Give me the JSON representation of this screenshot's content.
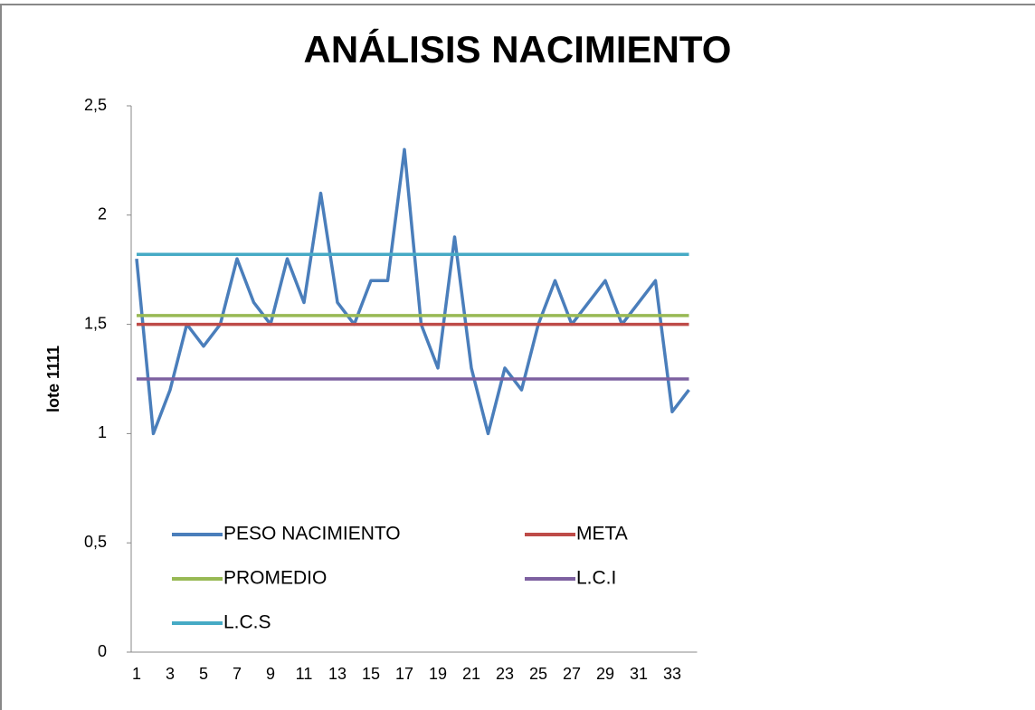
{
  "chart_data": {
    "type": "line",
    "title": "ANÁLISIS NACIMIENTO",
    "ylabel": "lote 1111",
    "categories": [
      1,
      null,
      3,
      null,
      5,
      null,
      7,
      null,
      9,
      null,
      11,
      null,
      13,
      null,
      15,
      null,
      17,
      null,
      19,
      null,
      21,
      null,
      23,
      null,
      25,
      null,
      27,
      null,
      29,
      null,
      31,
      null,
      33,
      null
    ],
    "series": [
      {
        "name": "PESO NACIMIENTO",
        "color": "#4a7ebb",
        "values": [
          1.8,
          1.0,
          1.2,
          1.5,
          1.4,
          1.5,
          1.8,
          1.6,
          1.5,
          1.8,
          1.6,
          2.1,
          1.6,
          1.5,
          1.7,
          1.7,
          2.3,
          1.5,
          1.3,
          1.9,
          1.3,
          1.0,
          1.3,
          1.2,
          1.5,
          1.7,
          1.5,
          1.6,
          1.7,
          1.5,
          1.6,
          1.7,
          1.1,
          1.2
        ]
      },
      {
        "name": "META",
        "color": "#be4b48",
        "values": [
          1.5,
          1.5,
          1.5,
          1.5,
          1.5,
          1.5,
          1.5,
          1.5,
          1.5,
          1.5,
          1.5,
          1.5,
          1.5,
          1.5,
          1.5,
          1.5,
          1.5,
          1.5,
          1.5,
          1.5,
          1.5,
          1.5,
          1.5,
          1.5,
          1.5,
          1.5,
          1.5,
          1.5,
          1.5,
          1.5,
          1.5,
          1.5,
          1.5,
          1.5
        ]
      },
      {
        "name": "PROMEDIO",
        "color": "#98b954",
        "values": [
          1.54,
          1.54,
          1.54,
          1.54,
          1.54,
          1.54,
          1.54,
          1.54,
          1.54,
          1.54,
          1.54,
          1.54,
          1.54,
          1.54,
          1.54,
          1.54,
          1.54,
          1.54,
          1.54,
          1.54,
          1.54,
          1.54,
          1.54,
          1.54,
          1.54,
          1.54,
          1.54,
          1.54,
          1.54,
          1.54,
          1.54,
          1.54,
          1.54,
          1.54
        ]
      },
      {
        "name": "L.C.I",
        "color": "#7d60a0",
        "values": [
          1.25,
          1.25,
          1.25,
          1.25,
          1.25,
          1.25,
          1.25,
          1.25,
          1.25,
          1.25,
          1.25,
          1.25,
          1.25,
          1.25,
          1.25,
          1.25,
          1.25,
          1.25,
          1.25,
          1.25,
          1.25,
          1.25,
          1.25,
          1.25,
          1.25,
          1.25,
          1.25,
          1.25,
          1.25,
          1.25,
          1.25,
          1.25,
          1.25,
          1.25
        ]
      },
      {
        "name": "L.C.S",
        "color": "#46aac5",
        "values": [
          1.82,
          1.82,
          1.82,
          1.82,
          1.82,
          1.82,
          1.82,
          1.82,
          1.82,
          1.82,
          1.82,
          1.82,
          1.82,
          1.82,
          1.82,
          1.82,
          1.82,
          1.82,
          1.82,
          1.82,
          1.82,
          1.82,
          1.82,
          1.82,
          1.82,
          1.82,
          1.82,
          1.82,
          1.82,
          1.82,
          1.82,
          1.82,
          1.82,
          1.82
        ]
      }
    ],
    "ylim": [
      0,
      2.5
    ],
    "yticks": [
      0,
      {
        "value": 0.5,
        "label": "0,5"
      },
      1,
      {
        "value": 1.5,
        "label": "1,5"
      },
      2,
      {
        "value": 2.5,
        "label": "2,5"
      }
    ],
    "legend": "inside-bottom"
  }
}
